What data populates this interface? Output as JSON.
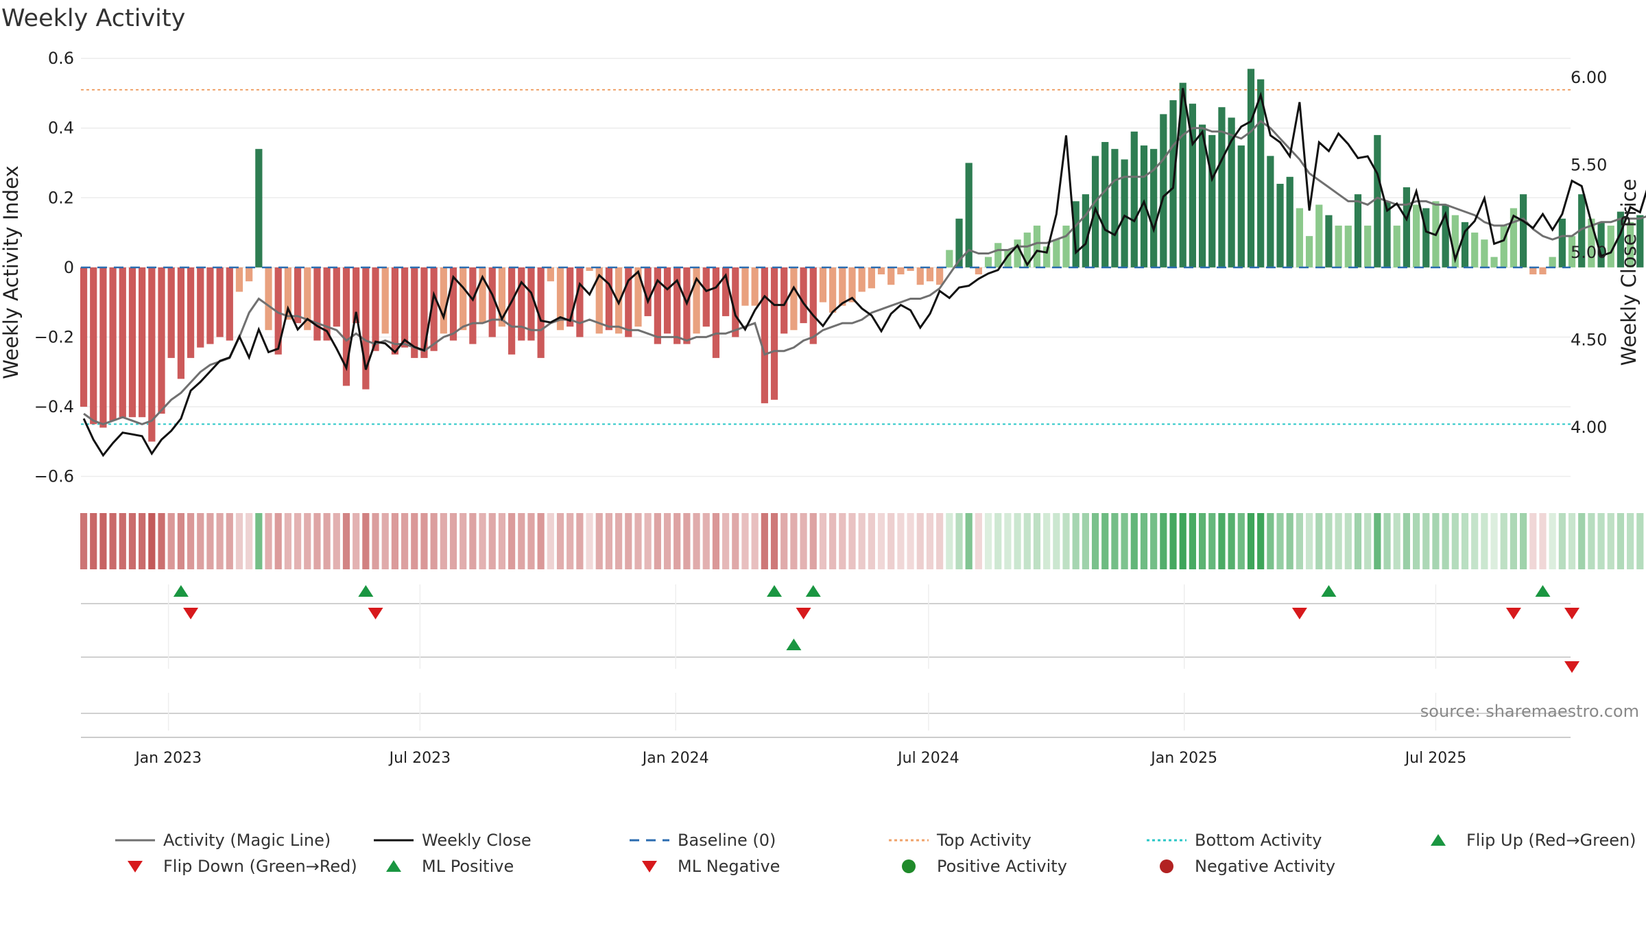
{
  "chart_data": {
    "type": "bar",
    "title": "Weekly Activity",
    "ylabel": "Weekly Activity Index",
    "y2label": "Weekly Close Price",
    "ylim": [
      -0.66,
      0.62
    ],
    "y2lim": [
      3.6,
      6.15
    ],
    "yticks": [
      0.6,
      0.4,
      0.2,
      0,
      -0.2,
      -0.4,
      -0.6
    ],
    "ytick_labels": [
      "0.6",
      "0.4",
      "0.2",
      "0",
      "−0.2",
      "−0.4",
      "−0.6"
    ],
    "y2ticks": [
      6.0,
      5.5,
      5.0,
      4.5,
      4.0
    ],
    "y2tick_labels": [
      "6.00",
      "5.50",
      "5.00",
      "4.50",
      "4.00"
    ],
    "x_range": [
      "2022-10-30",
      "2025-10-06"
    ],
    "xticks": [
      {
        "date": "2023-01-01",
        "label": "Jan 2023"
      },
      {
        "date": "2023-07-01",
        "label": "Jul 2023"
      },
      {
        "date": "2024-01-01",
        "label": "Jan 2024"
      },
      {
        "date": "2024-07-01",
        "label": "Jul 2024"
      },
      {
        "date": "2025-01-01",
        "label": "Jan 2025"
      },
      {
        "date": "2025-07-01",
        "label": "Jul 2025"
      }
    ],
    "start_week": "2022-11-01",
    "top_activity": 0.51,
    "bottom_activity": -0.45,
    "baseline": 0,
    "activity": [
      -0.4,
      -0.45,
      -0.46,
      -0.44,
      -0.43,
      -0.43,
      -0.43,
      -0.5,
      -0.42,
      -0.26,
      -0.32,
      -0.26,
      -0.23,
      -0.22,
      -0.2,
      -0.21,
      -0.07,
      -0.04,
      0.34,
      -0.18,
      -0.25,
      -0.15,
      -0.16,
      -0.18,
      -0.21,
      -0.21,
      -0.17,
      -0.34,
      -0.16,
      -0.35,
      -0.24,
      -0.19,
      -0.25,
      -0.23,
      -0.26,
      -0.26,
      -0.24,
      -0.19,
      -0.21,
      -0.18,
      -0.22,
      -0.16,
      -0.2,
      -0.17,
      -0.25,
      -0.21,
      -0.21,
      -0.26,
      -0.04,
      -0.18,
      -0.17,
      -0.2,
      -0.01,
      -0.19,
      -0.18,
      -0.19,
      -0.2,
      -0.17,
      -0.14,
      -0.22,
      -0.19,
      -0.22,
      -0.22,
      -0.19,
      -0.17,
      -0.26,
      -0.14,
      -0.2,
      -0.11,
      -0.11,
      -0.39,
      -0.38,
      -0.19,
      -0.18,
      -0.16,
      -0.22,
      -0.1,
      -0.13,
      -0.11,
      -0.1,
      -0.07,
      -0.06,
      -0.02,
      -0.05,
      -0.02,
      -0.01,
      -0.05,
      -0.04,
      -0.05,
      0.05,
      0.14,
      0.3,
      -0.02,
      0.03,
      0.07,
      0.05,
      0.08,
      0.1,
      0.12,
      0.06,
      0.08,
      0.12,
      0.19,
      0.21,
      0.32,
      0.36,
      0.34,
      0.31,
      0.39,
      0.35,
      0.34,
      0.44,
      0.48,
      0.53,
      0.47,
      0.41,
      0.38,
      0.46,
      0.43,
      0.35,
      0.57,
      0.54,
      0.32,
      0.24,
      0.26,
      0.17,
      0.09,
      0.18,
      0.15,
      0.12,
      0.12,
      0.21,
      0.12,
      0.38,
      0.19,
      0.12,
      0.23,
      0.18,
      0.17,
      0.19,
      0.18,
      0.15,
      0.13,
      0.1,
      0.08,
      0.03,
      0.12,
      0.17,
      0.21,
      -0.02,
      -0.02,
      0.03,
      0.14,
      0.09,
      0.21,
      0.14,
      0.13,
      0.12,
      0.16,
      0.13,
      0.15,
      0.19,
      0.15,
      0.14,
      0.2,
      0.12,
      0.15,
      0.2,
      0.16,
      0.15,
      0.18,
      0.16,
      0.14,
      0.11,
      0.09,
      -0.02,
      -0.06,
      -0.01,
      0.05,
      0.05,
      0.04,
      -0.11,
      -0.12
    ],
    "close": [
      4.05,
      3.93,
      3.84,
      3.91,
      3.97,
      3.96,
      3.95,
      3.85,
      3.93,
      3.98,
      4.05,
      4.21,
      4.26,
      4.32,
      4.38,
      4.4,
      4.52,
      4.4,
      4.56,
      4.43,
      4.45,
      4.68,
      4.56,
      4.62,
      4.58,
      4.55,
      4.45,
      4.34,
      4.66,
      4.33,
      4.49,
      4.48,
      4.43,
      4.5,
      4.46,
      4.44,
      4.76,
      4.63,
      4.86,
      4.8,
      4.73,
      4.86,
      4.76,
      4.62,
      4.72,
      4.83,
      4.77,
      4.61,
      4.6,
      4.63,
      4.61,
      4.82,
      4.76,
      4.87,
      4.82,
      4.71,
      4.84,
      4.89,
      4.72,
      4.84,
      4.79,
      4.84,
      4.71,
      4.85,
      4.78,
      4.8,
      4.87,
      4.64,
      4.56,
      4.67,
      4.75,
      4.7,
      4.7,
      4.8,
      4.71,
      4.64,
      4.58,
      4.66,
      4.71,
      4.74,
      4.68,
      4.64,
      4.55,
      4.65,
      4.7,
      4.67,
      4.57,
      4.65,
      4.78,
      4.74,
      4.8,
      4.81,
      4.85,
      4.88,
      4.9,
      4.98,
      5.04,
      4.93,
      5.01,
      5.0,
      5.22,
      5.67,
      5.0,
      5.05,
      5.25,
      5.13,
      5.1,
      5.21,
      5.18,
      5.29,
      5.13,
      5.32,
      5.37,
      5.94,
      5.62,
      5.69,
      5.42,
      5.53,
      5.64,
      5.72,
      5.75,
      5.9,
      5.67,
      5.63,
      5.55,
      5.86,
      5.24,
      5.63,
      5.58,
      5.68,
      5.62,
      5.54,
      5.55,
      5.45,
      5.24,
      5.28,
      5.19,
      5.35,
      5.12,
      5.1,
      5.22,
      4.96,
      5.12,
      5.18,
      5.31,
      5.05,
      5.07,
      5.21,
      5.18,
      5.14,
      5.22,
      5.13,
      5.22,
      5.41,
      5.38,
      5.17,
      4.98,
      5.0,
      5.11,
      5.26,
      5.23,
      5.41,
      5.38,
      5.36,
      5.37,
      5.26,
      5.23,
      5.18,
      5.33,
      5.29,
      5.34,
      5.25,
      5.47,
      5.52,
      5.41,
      5.5,
      5.51,
      5.44,
      5.38,
      5.09,
      5.14,
      5.23,
      4.98,
      5.0
    ],
    "magic_line": [
      -0.42,
      -0.44,
      -0.45,
      -0.44,
      -0.43,
      -0.44,
      -0.45,
      -0.44,
      -0.41,
      -0.38,
      -0.36,
      -0.33,
      -0.3,
      -0.28,
      -0.27,
      -0.26,
      -0.2,
      -0.13,
      -0.09,
      -0.11,
      -0.13,
      -0.14,
      -0.14,
      -0.15,
      -0.16,
      -0.17,
      -0.18,
      -0.21,
      -0.19,
      -0.21,
      -0.22,
      -0.21,
      -0.22,
      -0.22,
      -0.23,
      -0.24,
      -0.22,
      -0.2,
      -0.19,
      -0.17,
      -0.16,
      -0.16,
      -0.15,
      -0.15,
      -0.17,
      -0.17,
      -0.18,
      -0.18,
      -0.16,
      -0.15,
      -0.15,
      -0.16,
      -0.15,
      -0.16,
      -0.17,
      -0.17,
      -0.18,
      -0.18,
      -0.19,
      -0.2,
      -0.2,
      -0.2,
      -0.21,
      -0.2,
      -0.2,
      -0.19,
      -0.19,
      -0.18,
      -0.17,
      -0.16,
      -0.25,
      -0.24,
      -0.24,
      -0.23,
      -0.21,
      -0.2,
      -0.18,
      -0.17,
      -0.16,
      -0.16,
      -0.15,
      -0.13,
      -0.12,
      -0.11,
      -0.1,
      -0.09,
      -0.09,
      -0.08,
      -0.06,
      -0.02,
      0.02,
      0.05,
      0.04,
      0.04,
      0.05,
      0.05,
      0.06,
      0.06,
      0.07,
      0.07,
      0.08,
      0.09,
      0.12,
      0.15,
      0.19,
      0.22,
      0.25,
      0.26,
      0.26,
      0.26,
      0.28,
      0.31,
      0.35,
      0.38,
      0.4,
      0.4,
      0.39,
      0.39,
      0.38,
      0.37,
      0.39,
      0.42,
      0.4,
      0.37,
      0.34,
      0.31,
      0.27,
      0.25,
      0.23,
      0.21,
      0.19,
      0.19,
      0.18,
      0.2,
      0.19,
      0.18,
      0.18,
      0.19,
      0.19,
      0.18,
      0.18,
      0.17,
      0.16,
      0.15,
      0.13,
      0.12,
      0.12,
      0.13,
      0.14,
      0.11,
      0.09,
      0.08,
      0.09,
      0.09,
      0.11,
      0.12,
      0.13,
      0.13,
      0.14,
      0.14,
      0.14,
      0.15,
      0.14,
      0.14,
      0.15,
      0.14,
      0.14,
      0.15,
      0.15,
      0.15,
      0.15,
      0.15,
      0.14,
      0.13,
      0.11,
      0.08,
      0.05,
      0.04,
      0.04,
      0.04,
      0.02,
      0.0
    ],
    "events": {
      "flip_up": [
        "2023-01-10",
        "2023-05-23",
        "2024-03-12",
        "2024-04-09",
        "2025-04-15",
        "2025-09-16"
      ],
      "flip_down": [
        "2023-01-17",
        "2023-05-30",
        "2024-04-02",
        "2025-03-25",
        "2025-08-26",
        "2025-10-07"
      ],
      "ml_positive": [
        "2024-03-26"
      ],
      "ml_negative": [
        "2025-10-07"
      ],
      "positive_activity": [],
      "negative_activity": []
    },
    "colors": {
      "bar_pos_strong": "#2e7d52",
      "bar_pos_weak": "#8cc98c",
      "bar_neg_strong": "#cc5a5a",
      "bar_neg_weak": "#e9a17f",
      "magic_line": "#707070",
      "close": "#111111",
      "baseline": "#2b6cb0",
      "top": "#f0a26a",
      "bottom": "#2ac7c7",
      "flip_up": "#1a9641",
      "flip_down": "#d7191c",
      "positive": "#1f8a2a",
      "negative": "#b22222"
    },
    "legend": [
      {
        "label": "Activity (Magic Line)",
        "kind": "line",
        "color": "#707070",
        "dash": ""
      },
      {
        "label": "Weekly Close",
        "kind": "line",
        "color": "#111111",
        "dash": ""
      },
      {
        "label": "Baseline (0)",
        "kind": "line",
        "color": "#2b6cb0",
        "dash": "14 10"
      },
      {
        "label": "Top Activity",
        "kind": "line",
        "color": "#f0a26a",
        "dash": "4 4"
      },
      {
        "label": "Bottom Activity",
        "kind": "line",
        "color": "#2ac7c7",
        "dash": "4 4"
      },
      {
        "label": "Flip Up (Red→Green)",
        "kind": "tri-up",
        "color": "#1a9641"
      },
      {
        "label": "Flip Down (Green→Red)",
        "kind": "tri-down",
        "color": "#d7191c"
      },
      {
        "label": "ML Positive",
        "kind": "tri-up",
        "color": "#1a9641"
      },
      {
        "label": "ML Negative",
        "kind": "tri-down",
        "color": "#d7191c"
      },
      {
        "label": "Positive Activity",
        "kind": "dot",
        "color": "#1f8a2a"
      },
      {
        "label": "Negative Activity",
        "kind": "dot",
        "color": "#b22222"
      }
    ],
    "source": "source: sharemaestro.com"
  }
}
